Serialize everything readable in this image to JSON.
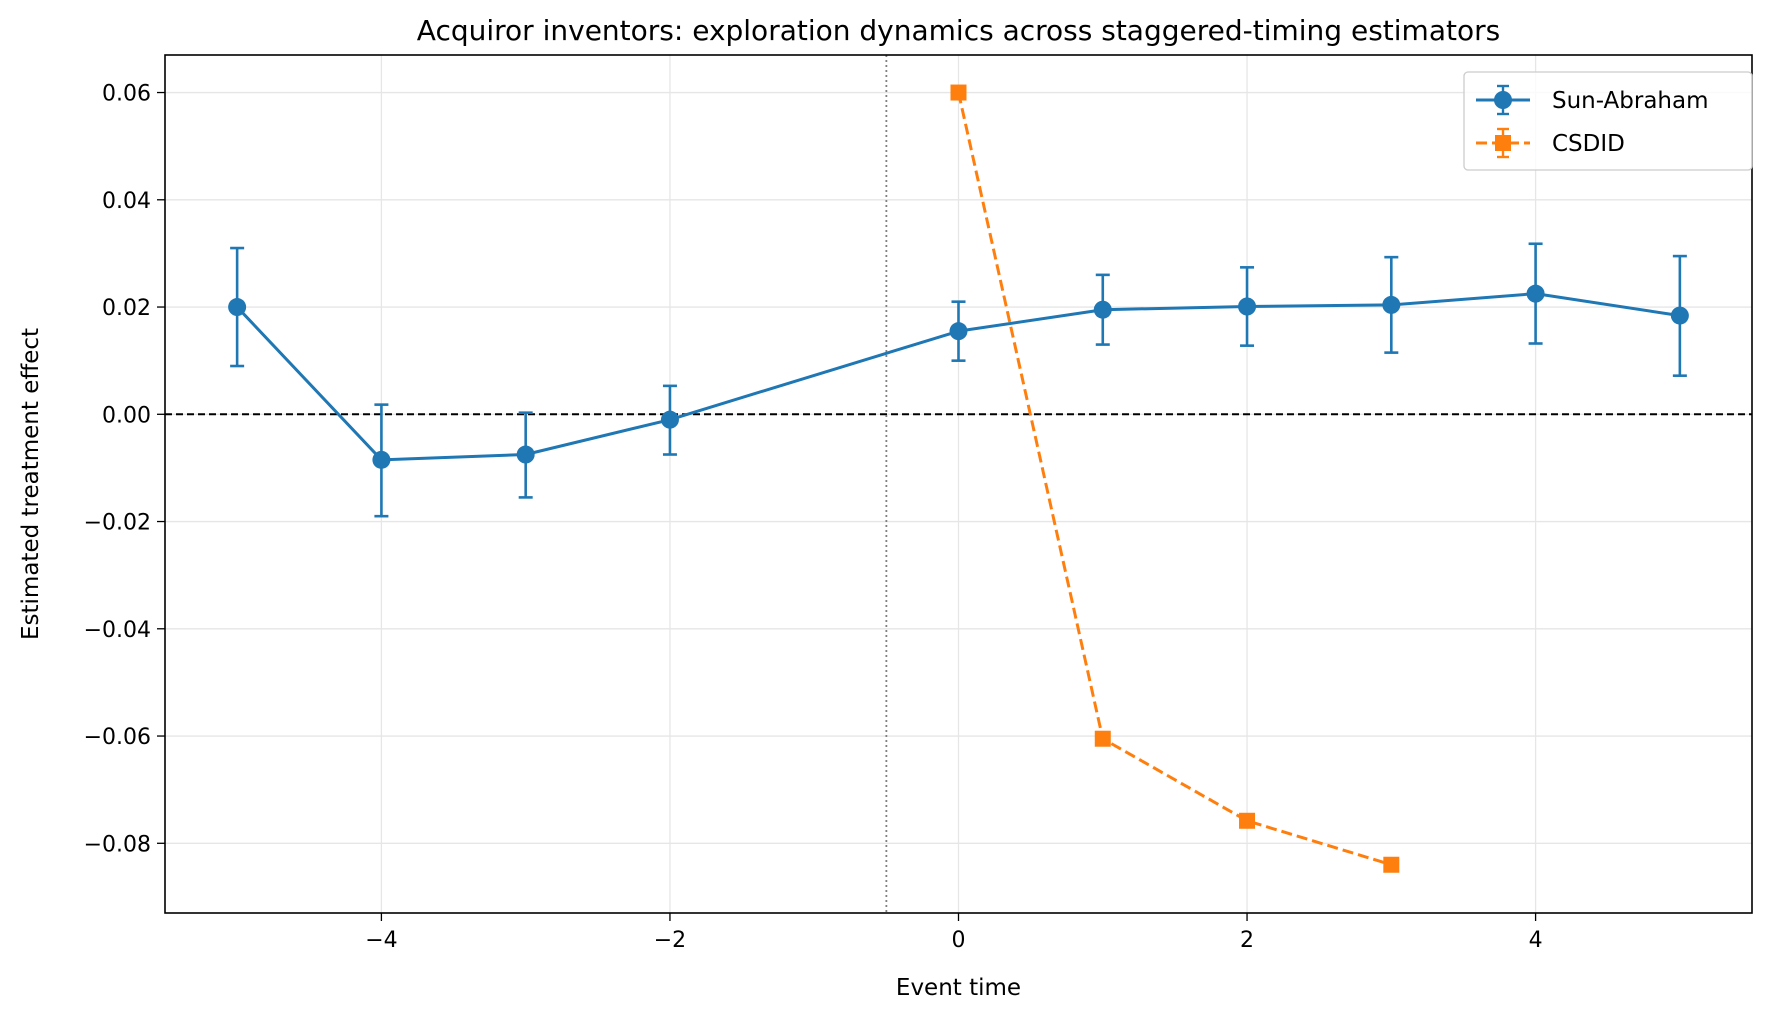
{
  "chart_data": {
    "type": "line",
    "title": "Acquiror inventors: exploration dynamics across staggered-timing estimators",
    "xlabel": "Event time",
    "ylabel": "Estimated treatment effect",
    "xlim": [
      -5.5,
      5.5
    ],
    "ylim": [
      -0.093,
      0.067
    ],
    "xticks": [
      -4,
      -2,
      0,
      2,
      4
    ],
    "xtick_labels": [
      "−4",
      "−2",
      "0",
      "2",
      "4"
    ],
    "yticks": [
      -0.08,
      -0.06,
      -0.04,
      -0.02,
      0.0,
      0.02,
      0.04,
      0.06
    ],
    "ytick_labels": [
      "−0.08",
      "−0.06",
      "−0.04",
      "−0.02",
      "0.00",
      "0.02",
      "0.04",
      "0.06"
    ],
    "grid": true,
    "legend_position": "top-right",
    "reference_lines": {
      "horizontal_y": 0.0,
      "vertical_x": -0.5
    },
    "series": [
      {
        "name": "Sun-Abraham",
        "color": "#1f77b4",
        "marker": "circle",
        "linestyle": "solid",
        "x": [
          -5,
          -4,
          -3,
          -2,
          0,
          1,
          2,
          3,
          4,
          5
        ],
        "y": [
          0.02,
          -0.0085,
          -0.0075,
          -0.001,
          0.0155,
          0.0195,
          0.0201,
          0.0204,
          0.0225,
          0.0184
        ],
        "ci_low": [
          0.009,
          -0.019,
          -0.0155,
          -0.0075,
          0.01,
          0.013,
          0.0128,
          0.0115,
          0.0132,
          0.0072
        ],
        "ci_high": [
          0.031,
          0.0018,
          0.0003,
          0.0053,
          0.021,
          0.026,
          0.0274,
          0.0293,
          0.0318,
          0.0295
        ]
      },
      {
        "name": "CSDID",
        "color": "#ff7f0e",
        "marker": "square",
        "linestyle": "dashed",
        "x": [
          0,
          1,
          2,
          3
        ],
        "y": [
          0.06,
          -0.0605,
          -0.0758,
          -0.084
        ]
      }
    ]
  }
}
